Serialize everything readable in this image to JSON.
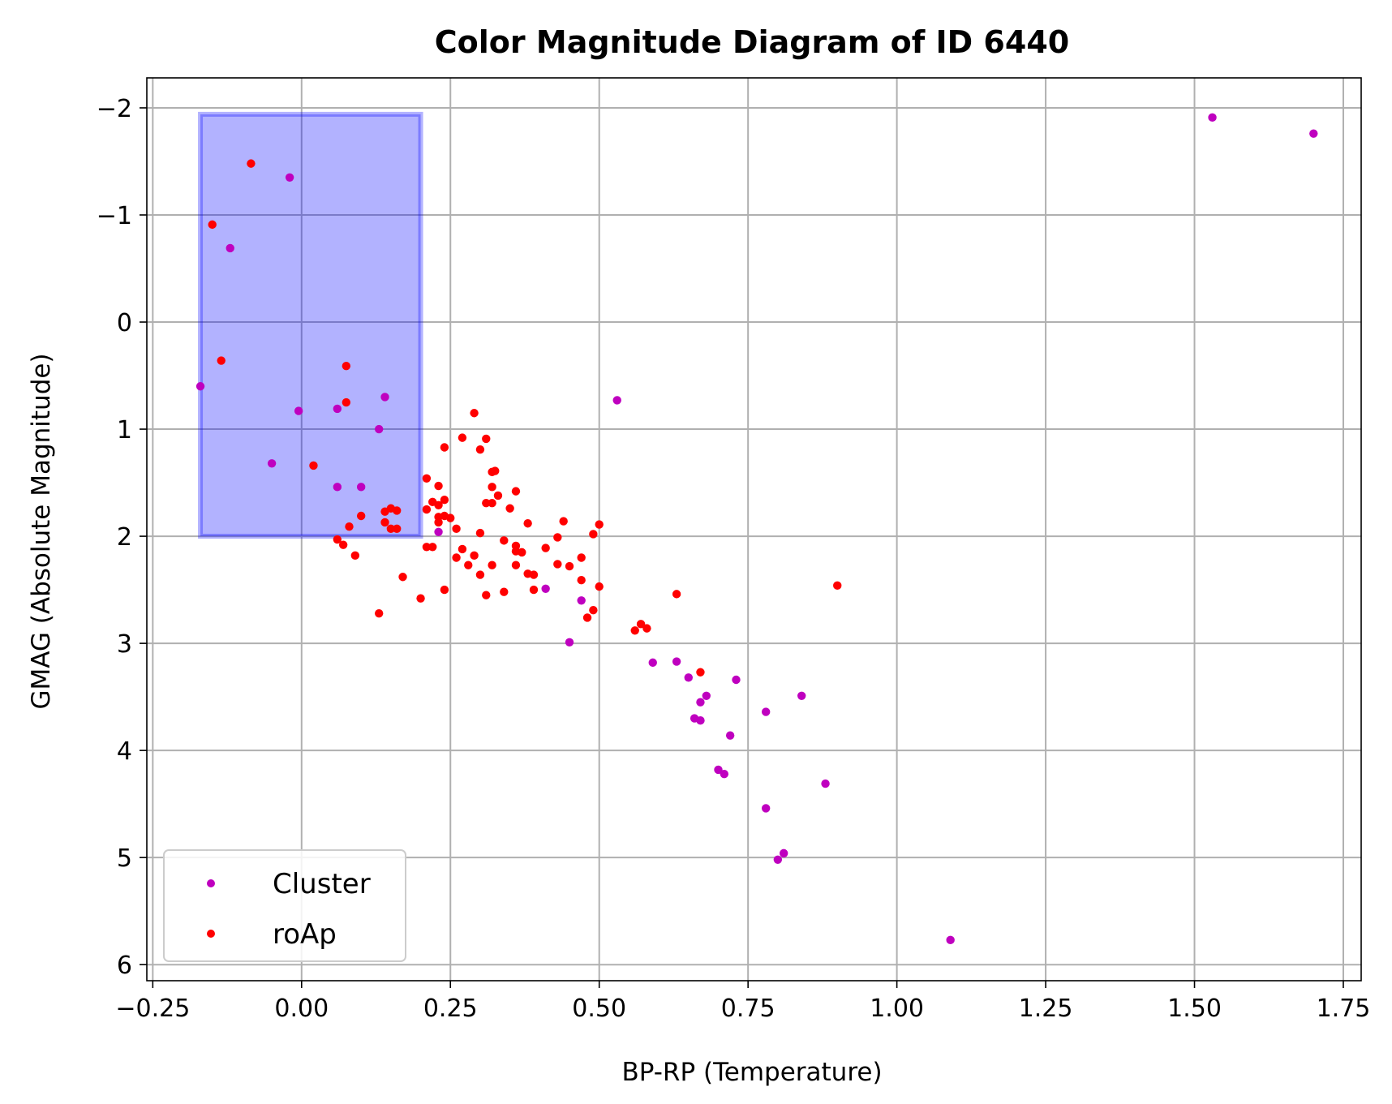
{
  "chart_data": {
    "type": "scatter",
    "title": "Color Magnitude Diagram of ID 6440",
    "xlabel": "BP-RP (Temperature)",
    "ylabel": "GMAG (Absolute Magnitude)",
    "xlim": [
      -0.26,
      1.78
    ],
    "ylim": [
      6.15,
      -2.28
    ],
    "y_inverted": true,
    "grid": true,
    "legend_position": "lower-left",
    "x_ticks": [
      -0.25,
      0.0,
      0.25,
      0.5,
      0.75,
      1.0,
      1.25,
      1.5,
      1.75
    ],
    "x_tick_labels": [
      "−0.25",
      "0.00",
      "0.25",
      "0.50",
      "0.75",
      "1.00",
      "1.25",
      "1.50",
      "1.75"
    ],
    "y_ticks": [
      -2,
      -1,
      0,
      1,
      2,
      3,
      4,
      5,
      6
    ],
    "y_tick_labels": [
      "−2",
      "−1",
      "0",
      "1",
      "2",
      "3",
      "4",
      "5",
      "6"
    ],
    "region": {
      "x": [
        -0.17,
        0.2
      ],
      "y": [
        -1.94,
        2.0
      ],
      "color": "#0000ff"
    },
    "series": [
      {
        "name": "Cluster",
        "color": "#bf00bf",
        "points": [
          [
            1.53,
            -1.91
          ],
          [
            1.7,
            -1.76
          ],
          [
            -0.02,
            -1.35
          ],
          [
            -0.12,
            -0.69
          ],
          [
            -0.17,
            0.6
          ],
          [
            0.14,
            0.7
          ],
          [
            -0.005,
            0.83
          ],
          [
            0.06,
            0.81
          ],
          [
            0.13,
            1.0
          ],
          [
            -0.05,
            1.32
          ],
          [
            0.06,
            1.54
          ],
          [
            0.1,
            1.54
          ],
          [
            0.53,
            0.73
          ],
          [
            0.23,
            1.96
          ],
          [
            0.41,
            2.49
          ],
          [
            0.47,
            2.6
          ],
          [
            0.45,
            2.99
          ],
          [
            0.59,
            3.18
          ],
          [
            0.63,
            3.17
          ],
          [
            0.65,
            3.32
          ],
          [
            0.68,
            3.49
          ],
          [
            0.73,
            3.34
          ],
          [
            0.67,
            3.55
          ],
          [
            0.66,
            3.7
          ],
          [
            0.67,
            3.72
          ],
          [
            0.72,
            3.86
          ],
          [
            0.78,
            3.64
          ],
          [
            0.84,
            3.49
          ],
          [
            0.7,
            4.18
          ],
          [
            0.71,
            4.22
          ],
          [
            0.78,
            4.54
          ],
          [
            0.88,
            4.31
          ],
          [
            0.81,
            4.96
          ],
          [
            0.8,
            5.02
          ],
          [
            1.09,
            5.77
          ]
        ]
      },
      {
        "name": "roAp",
        "color": "#ff0000",
        "points": [
          [
            -0.085,
            -1.48
          ],
          [
            -0.15,
            -0.91
          ],
          [
            -0.135,
            0.36
          ],
          [
            0.075,
            0.41
          ],
          [
            0.075,
            0.75
          ],
          [
            0.02,
            1.34
          ],
          [
            0.29,
            0.85
          ],
          [
            0.27,
            1.08
          ],
          [
            0.31,
            1.09
          ],
          [
            0.24,
            1.17
          ],
          [
            0.3,
            1.19
          ],
          [
            0.32,
            1.4
          ],
          [
            0.325,
            1.39
          ],
          [
            0.21,
            1.46
          ],
          [
            0.23,
            1.53
          ],
          [
            0.32,
            1.54
          ],
          [
            0.36,
            1.58
          ],
          [
            0.33,
            1.62
          ],
          [
            0.24,
            1.66
          ],
          [
            0.22,
            1.68
          ],
          [
            0.31,
            1.69
          ],
          [
            0.32,
            1.69
          ],
          [
            0.23,
            1.71
          ],
          [
            0.35,
            1.74
          ],
          [
            0.21,
            1.75
          ],
          [
            0.15,
            1.74
          ],
          [
            0.14,
            1.77
          ],
          [
            0.16,
            1.76
          ],
          [
            0.24,
            1.81
          ],
          [
            0.23,
            1.82
          ],
          [
            0.25,
            1.83
          ],
          [
            0.1,
            1.81
          ],
          [
            0.38,
            1.88
          ],
          [
            0.44,
            1.86
          ],
          [
            0.5,
            1.89
          ],
          [
            0.23,
            1.87
          ],
          [
            0.14,
            1.87
          ],
          [
            0.08,
            1.91
          ],
          [
            0.26,
            1.93
          ],
          [
            0.15,
            1.93
          ],
          [
            0.16,
            1.93
          ],
          [
            0.3,
            1.97
          ],
          [
            0.49,
            1.98
          ],
          [
            0.43,
            2.01
          ],
          [
            0.06,
            2.03
          ],
          [
            0.34,
            2.04
          ],
          [
            0.07,
            2.08
          ],
          [
            0.36,
            2.09
          ],
          [
            0.21,
            2.1
          ],
          [
            0.22,
            2.1
          ],
          [
            0.27,
            2.12
          ],
          [
            0.41,
            2.11
          ],
          [
            0.36,
            2.14
          ],
          [
            0.37,
            2.15
          ],
          [
            0.09,
            2.18
          ],
          [
            0.29,
            2.18
          ],
          [
            0.26,
            2.2
          ],
          [
            0.47,
            2.2
          ],
          [
            0.28,
            2.27
          ],
          [
            0.32,
            2.27
          ],
          [
            0.36,
            2.27
          ],
          [
            0.43,
            2.26
          ],
          [
            0.45,
            2.28
          ],
          [
            0.3,
            2.36
          ],
          [
            0.38,
            2.35
          ],
          [
            0.39,
            2.36
          ],
          [
            0.17,
            2.38
          ],
          [
            0.47,
            2.41
          ],
          [
            0.5,
            2.47
          ],
          [
            0.9,
            2.46
          ],
          [
            0.24,
            2.5
          ],
          [
            0.34,
            2.52
          ],
          [
            0.39,
            2.5
          ],
          [
            0.31,
            2.55
          ],
          [
            0.63,
            2.54
          ],
          [
            0.2,
            2.58
          ],
          [
            0.49,
            2.69
          ],
          [
            0.13,
            2.72
          ],
          [
            0.48,
            2.76
          ],
          [
            0.57,
            2.82
          ],
          [
            0.58,
            2.86
          ],
          [
            0.56,
            2.88
          ],
          [
            0.67,
            3.27
          ]
        ]
      }
    ]
  }
}
